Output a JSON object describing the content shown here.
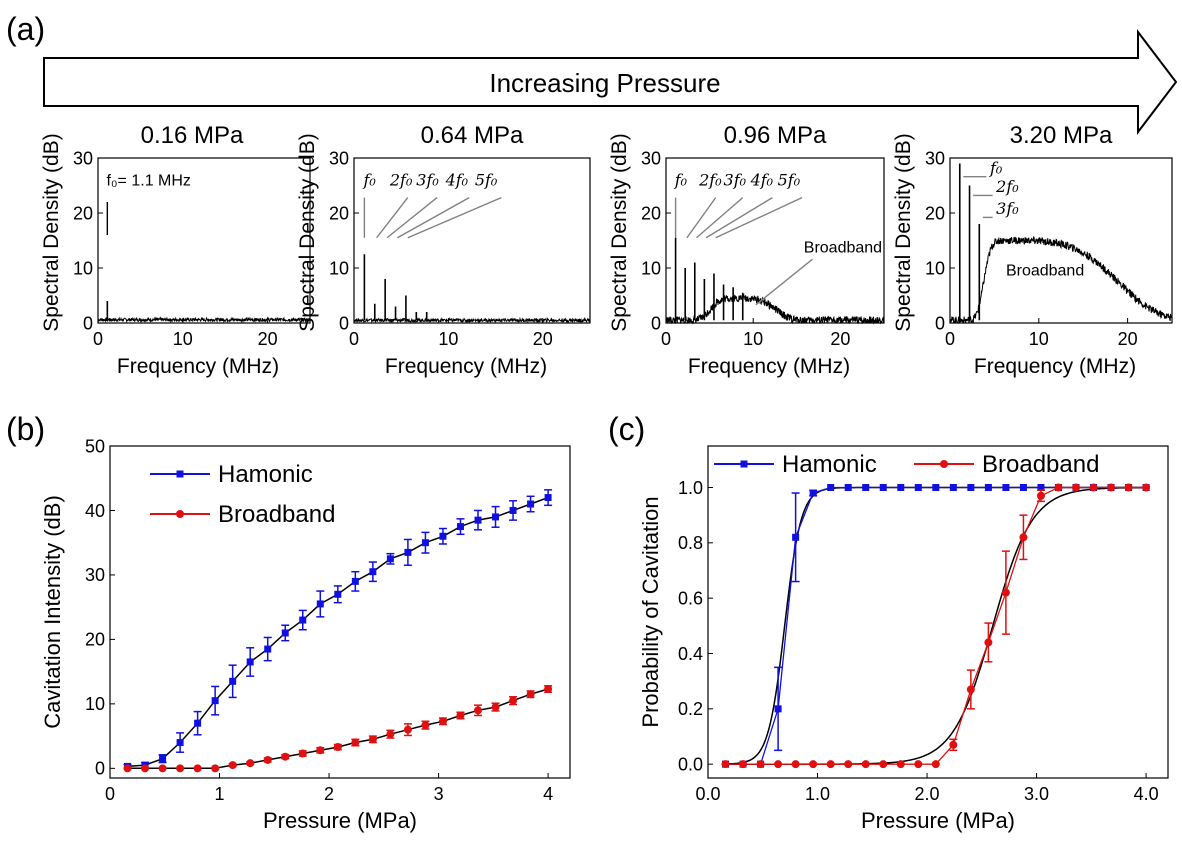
{
  "panel_labels": {
    "a": "(a)",
    "b": "(b)",
    "c": "(c)"
  },
  "arrow_label": "Increasing Pressure",
  "colors": {
    "harmonic": "#1010e0",
    "broadband": "#e01010",
    "fit": "#000000",
    "annotation": "#808080"
  },
  "chart_data": [
    {
      "id": "spec1",
      "type": "line",
      "title": "0.16 MPa",
      "xlabel": "Frequency (MHz)",
      "ylabel": "Spectral Density (dB)",
      "xlim": [
        0,
        25
      ],
      "ylim": [
        0,
        30
      ],
      "xticks": [
        0,
        10,
        20
      ],
      "yticks": [
        0,
        10,
        20,
        30
      ],
      "fundamental": 1.1,
      "peaks": [
        {
          "f": 1.1,
          "h": 4
        }
      ],
      "floor": 0.6,
      "broadband": {
        "amp": 0,
        "center": 0,
        "width": 1
      },
      "annotations": [
        {
          "text": "f₀= 1.1 MHz",
          "x": 1,
          "y": 25
        }
      ]
    },
    {
      "id": "spec2",
      "type": "line",
      "title": "0.64 MPa",
      "xlabel": "Frequency (MHz)",
      "ylabel": "Spectral Density (dB)",
      "xlim": [
        0,
        25
      ],
      "ylim": [
        0,
        30
      ],
      "xticks": [
        0,
        10,
        20
      ],
      "yticks": [
        0,
        10,
        20,
        30
      ],
      "fundamental": 1.1,
      "peaks": [
        {
          "f": 1.1,
          "h": 12.5
        },
        {
          "f": 2.2,
          "h": 3.5
        },
        {
          "f": 3.3,
          "h": 8
        },
        {
          "f": 4.4,
          "h": 3
        },
        {
          "f": 5.5,
          "h": 5
        },
        {
          "f": 6.6,
          "h": 2
        },
        {
          "f": 7.7,
          "h": 2
        }
      ],
      "floor": 0.5,
      "broadband": {
        "amp": 0,
        "center": 0,
        "width": 1
      },
      "annotations": [
        {
          "text": "f₀",
          "x": 1,
          "y": 25
        },
        {
          "text": "2f₀",
          "x": 3.8,
          "y": 25
        },
        {
          "text": "3f₀",
          "x": 6.6,
          "y": 25
        },
        {
          "text": "4f₀",
          "x": 9.7,
          "y": 25
        },
        {
          "text": "5f₀",
          "x": 12.8,
          "y": 25
        }
      ]
    },
    {
      "id": "spec3",
      "type": "line",
      "title": "0.96 MPa",
      "xlabel": "Frequency (MHz)",
      "ylabel": "Spectral Density (dB)",
      "xlim": [
        0,
        25
      ],
      "ylim": [
        0,
        30
      ],
      "xticks": [
        0,
        10,
        20
      ],
      "yticks": [
        0,
        10,
        20,
        30
      ],
      "fundamental": 1.1,
      "peaks": [
        {
          "f": 1.1,
          "h": 15.5
        },
        {
          "f": 2.2,
          "h": 10
        },
        {
          "f": 3.3,
          "h": 11
        },
        {
          "f": 4.4,
          "h": 8
        },
        {
          "f": 5.5,
          "h": 9
        },
        {
          "f": 6.6,
          "h": 7
        },
        {
          "f": 7.7,
          "h": 6.5
        },
        {
          "f": 8.8,
          "h": 5.5
        }
      ],
      "floor": 0.5,
      "broadband": {
        "amp": 4,
        "center": 8,
        "width": 5
      },
      "annotations": [
        {
          "text": "f₀",
          "x": 1,
          "y": 25
        },
        {
          "text": "2f₀",
          "x": 3.8,
          "y": 25
        },
        {
          "text": "3f₀",
          "x": 6.6,
          "y": 25
        },
        {
          "text": "4f₀",
          "x": 9.7,
          "y": 25
        },
        {
          "text": "5f₀",
          "x": 12.8,
          "y": 25
        },
        {
          "text": "Broadband",
          "x": 15.8,
          "y": 12.8
        }
      ]
    },
    {
      "id": "spec4",
      "type": "line",
      "title": "3.20 MPa",
      "xlabel": "Frequency (MHz)",
      "ylabel": "Spectral Density (dB)",
      "xlim": [
        0,
        25
      ],
      "ylim": [
        0,
        30
      ],
      "xticks": [
        0,
        10,
        20
      ],
      "yticks": [
        0,
        10,
        20,
        30
      ],
      "fundamental": 1.1,
      "peaks": [
        {
          "f": 1.1,
          "h": 29
        },
        {
          "f": 2.2,
          "h": 25
        },
        {
          "f": 3.3,
          "h": 18
        }
      ],
      "floor": 0.5,
      "broadband": {
        "amp": 14.5,
        "center": 6,
        "width": 14
      },
      "annotations": [
        {
          "text": "f₀",
          "x": 4.5,
          "y": 27.2
        },
        {
          "text": "2f₀",
          "x": 5.2,
          "y": 23.8
        },
        {
          "text": "3f₀",
          "x": 5.2,
          "y": 19.8
        },
        {
          "text": "Broadband",
          "x": 6.3,
          "y": 8.6
        }
      ]
    },
    {
      "id": "intensity",
      "type": "line",
      "xlabel": "Pressure (MPa)",
      "ylabel": "Cavitation Intensity (dB)",
      "xlim": [
        0,
        4.2
      ],
      "ylim": [
        -1.5,
        50
      ],
      "xticks": [
        0,
        1,
        2,
        3,
        4
      ],
      "yticks": [
        0,
        10,
        20,
        30,
        40,
        50
      ],
      "legend_position": "top-left",
      "x": [
        0.16,
        0.32,
        0.48,
        0.64,
        0.8,
        0.96,
        1.12,
        1.28,
        1.44,
        1.6,
        1.76,
        1.92,
        2.08,
        2.24,
        2.4,
        2.56,
        2.72,
        2.88,
        3.04,
        3.2,
        3.36,
        3.52,
        3.68,
        3.84,
        4.0
      ],
      "series": [
        {
          "name": "Hamonic",
          "values": [
            0.3,
            0.5,
            1.5,
            4,
            7,
            10.5,
            13.5,
            16.5,
            18.5,
            21,
            23,
            25.5,
            27,
            29,
            30.5,
            32.5,
            33.5,
            35,
            36,
            37.5,
            38.5,
            39,
            40,
            41,
            42
          ],
          "errors": [
            0.3,
            0.4,
            0.6,
            1.5,
            1.8,
            2.2,
            2.5,
            2.2,
            1.8,
            1.2,
            1.5,
            2,
            1.3,
            1.5,
            1.5,
            0.8,
            2,
            1.6,
            1.2,
            1.2,
            1.5,
            1.6,
            1.5,
            1.2,
            1.2
          ]
        },
        {
          "name": "Broadband",
          "values": [
            0,
            0,
            0,
            0,
            0,
            0,
            0.5,
            0.8,
            1.3,
            1.8,
            2.3,
            2.8,
            3.3,
            4,
            4.5,
            5.3,
            6,
            6.7,
            7.3,
            8.2,
            9,
            9.5,
            10.5,
            11.5,
            12.3
          ],
          "errors": [
            0,
            0,
            0,
            0,
            0,
            0,
            0.2,
            0.2,
            0.3,
            0.3,
            0.4,
            0.4,
            0.4,
            0.5,
            0.5,
            0.6,
            0.9,
            0.6,
            0.5,
            0.5,
            0.8,
            0.6,
            0.6,
            0.5,
            0.5
          ]
        }
      ]
    },
    {
      "id": "probability",
      "type": "line",
      "xlabel": "Pressure (MPa)",
      "ylabel": "Probability of Cavitation",
      "xlim": [
        0,
        4.2
      ],
      "ylim": [
        -0.05,
        1.15
      ],
      "xticks": [
        0,
        1,
        2,
        3,
        4
      ],
      "yticks": [
        0.0,
        0.2,
        0.4,
        0.6,
        0.8,
        1.0
      ],
      "legend_position": "top",
      "x": [
        0.16,
        0.32,
        0.48,
        0.64,
        0.8,
        0.96,
        1.12,
        1.28,
        1.44,
        1.6,
        1.76,
        1.92,
        2.08,
        2.24,
        2.4,
        2.56,
        2.72,
        2.88,
        3.04,
        3.2,
        3.36,
        3.52,
        3.68,
        3.84,
        4.0
      ],
      "series": [
        {
          "name": "Hamonic",
          "values": [
            0,
            0,
            0,
            0.2,
            0.82,
            0.98,
            1,
            1,
            1,
            1,
            1,
            1,
            1,
            1,
            1,
            1,
            1,
            1,
            1,
            1,
            1,
            1,
            1,
            1,
            1
          ],
          "errors": [
            0,
            0,
            0,
            0.15,
            0.16,
            0.01,
            0,
            0,
            0,
            0,
            0,
            0,
            0,
            0,
            0,
            0,
            0,
            0,
            0,
            0,
            0,
            0,
            0,
            0,
            0
          ],
          "fit_center": 0.7,
          "fit_scale": 0.075
        },
        {
          "name": "Broadband",
          "values": [
            0,
            0,
            0,
            0,
            0,
            0,
            0,
            0,
            0,
            0,
            0,
            0,
            0,
            0.07,
            0.27,
            0.44,
            0.62,
            0.82,
            0.97,
            1,
            1,
            1,
            1,
            1,
            1
          ],
          "errors": [
            0,
            0,
            0,
            0,
            0,
            0,
            0,
            0,
            0,
            0,
            0,
            0,
            0,
            0.02,
            0.07,
            0.07,
            0.15,
            0.08,
            0.02,
            0,
            0,
            0,
            0,
            0,
            0
          ],
          "fit_center": 2.6,
          "fit_scale": 0.18
        }
      ]
    }
  ]
}
